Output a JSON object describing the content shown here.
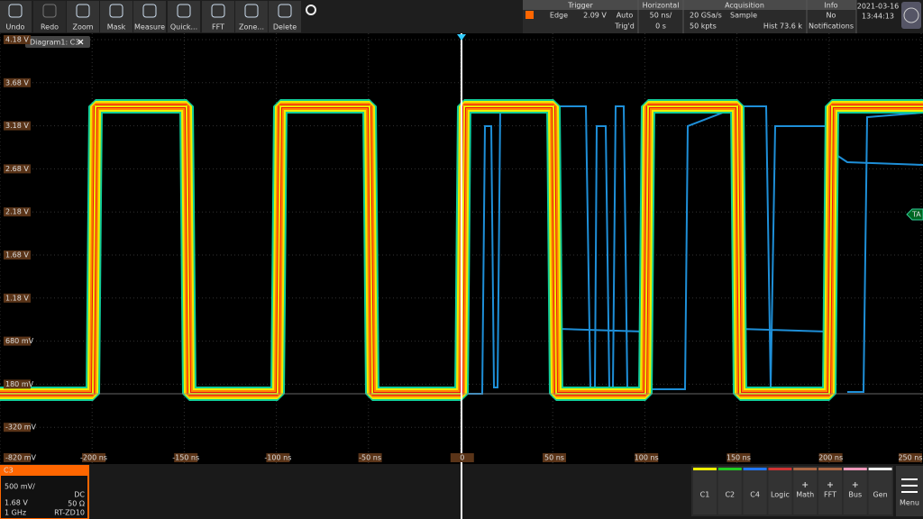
{
  "toolbar": {
    "buttons": [
      "Undo",
      "Redo",
      "Zoom",
      "Mask",
      "Measure",
      "Quick...",
      "FFT",
      "Zone...",
      "Delete"
    ]
  },
  "status": {
    "trigger": {
      "title": "Trigger",
      "type": "Edge",
      "level": "2.09 V",
      "mode": "Auto",
      "state": "Trig'd"
    },
    "horizontal": {
      "title": "Horizontal",
      "scale": "50 ns/",
      "position": "0 s"
    },
    "acquisition": {
      "title": "Acquisition",
      "rate": "20 GSa/s",
      "mode": "Sample",
      "length": "50 kpts",
      "hist": "Hist 73.6 k"
    },
    "info": {
      "title": "Info",
      "line1": "No",
      "line2": "Notifications"
    },
    "clock": {
      "date": "2021-03-16",
      "time": "13:44:13"
    }
  },
  "diagram": {
    "tab": "Diagram1: C3",
    "marker": "TA",
    "y_labels": [
      "4.18 V",
      "3.68 V",
      "3.18 V",
      "2.68 V",
      "2.18 V",
      "1.68 V",
      "1.18 V",
      "680 mV",
      "180 mV",
      "-320 mV",
      "-820 mV"
    ],
    "x_labels": [
      "-200 ns",
      "-150 ns",
      "-100 ns",
      "-50 ns",
      "0",
      "50 ns",
      "100 ns",
      "150 ns",
      "200 ns",
      "250 ns"
    ]
  },
  "channel": {
    "name": "C3",
    "scale": "500 mV/",
    "offset": "1.68 V",
    "coupling": "DC",
    "impedance": "50 Ω",
    "bandwidth": "1 GHz",
    "probe": "RT-ZD10"
  },
  "bottom_buttons": [
    "C1",
    "C2",
    "C4",
    "Logic",
    "Math",
    "FFT",
    "Bus",
    "Gen"
  ],
  "menu": "Menu"
}
